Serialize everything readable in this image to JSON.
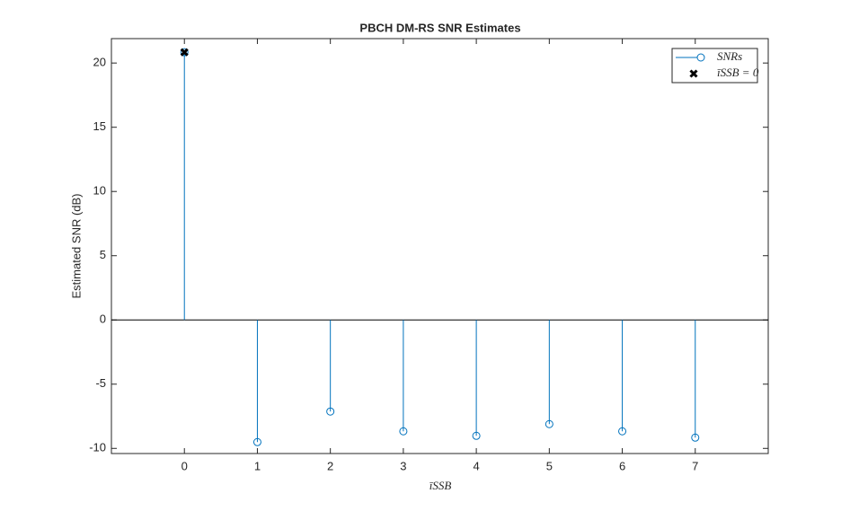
{
  "chart_data": {
    "type": "stem",
    "title": "PBCH DM-RS SNR Estimates",
    "xlabel": "īSSB",
    "ylabel": "Estimated SNR (dB)",
    "x": [
      0,
      1,
      2,
      3,
      4,
      5,
      6,
      7
    ],
    "series": [
      {
        "name": "SNRs",
        "color": "#0072bd",
        "marker": "circle",
        "values": [
          20.84,
          -9.51,
          -7.13,
          -8.67,
          -9.02,
          -8.11,
          -8.67,
          -9.16
        ]
      },
      {
        "name": "īSSB = 0",
        "color": "#000000",
        "marker": "x",
        "x": [
          0
        ],
        "values": [
          20.84
        ]
      }
    ],
    "xlim": [
      -1,
      8
    ],
    "ylim": [
      -10.4,
      21.9
    ],
    "xticks": [
      0,
      1,
      2,
      3,
      4,
      5,
      6,
      7
    ],
    "yticks": [
      -10,
      -5,
      0,
      5,
      10,
      15,
      20
    ],
    "legend": "top-right"
  }
}
